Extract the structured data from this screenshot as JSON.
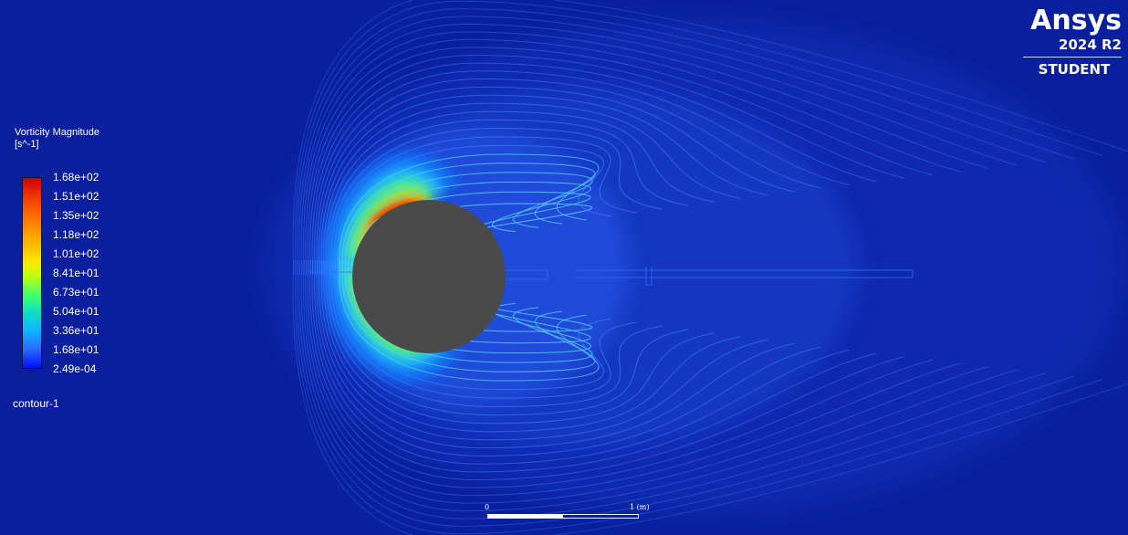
{
  "legend": {
    "title": "Vorticity Magnitude",
    "unit": "[s^-1]",
    "ticks": [
      "1.68e+02",
      "1.51e+02",
      "1.35e+02",
      "1.18e+02",
      "1.01e+02",
      "8.41e+01",
      "6.73e+01",
      "5.04e+01",
      "3.36e+01",
      "1.68e+01",
      "2.49e-04"
    ],
    "contour_name": "contour-1"
  },
  "brand": {
    "logo": "Ansys",
    "version": "2024 R2",
    "edition": "STUDENT"
  },
  "scale_bar": {
    "start_label": "0",
    "end_label": "1 (m)"
  },
  "colors": {
    "background": "#0a1f9e",
    "cylinder": "#4a4a4a",
    "max": "#cc0000",
    "min": "#0010ff"
  }
}
